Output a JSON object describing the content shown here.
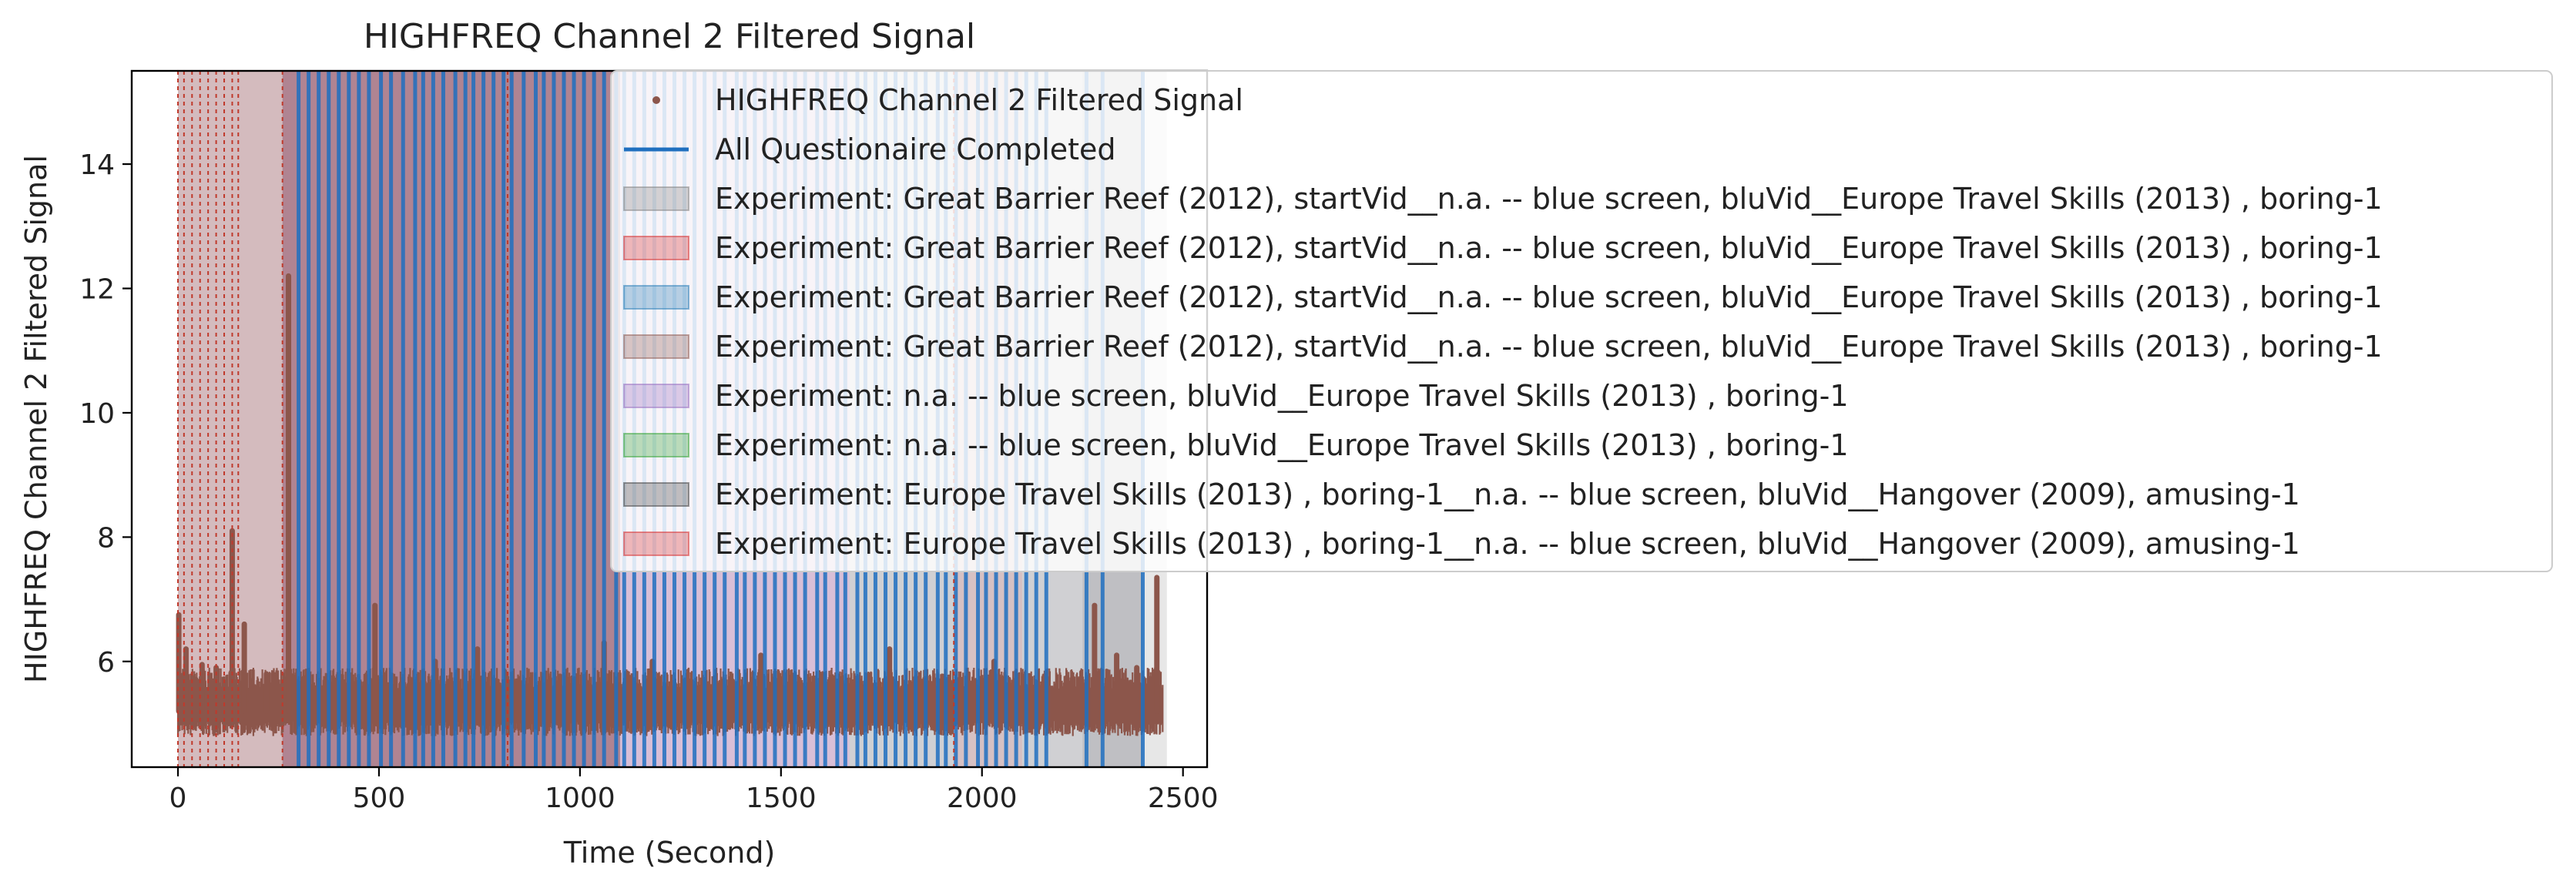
{
  "chart_data": {
    "type": "scatter",
    "title": "HIGHFREQ Channel 2 Filtered Signal",
    "xlabel": "Time (Second)",
    "ylabel": "HIGHFREQ Channel 2 Filtered Signal",
    "xlim": [
      -115,
      2560
    ],
    "ylim": [
      4.3,
      15.5
    ],
    "x_ticks": [
      0,
      500,
      1000,
      1500,
      2000,
      2500
    ],
    "y_ticks": [
      6,
      8,
      10,
      12,
      14
    ],
    "grid": false,
    "legend_position": "upper-right",
    "signal": {
      "name": "HIGHFREQ Channel 2 Filtered Signal",
      "color": "#8c564b",
      "x_range": [
        0,
        2450
      ],
      "baseline": [
        4.8,
        5.9
      ],
      "peaks": [
        {
          "x": 2,
          "y": 6.75
        },
        {
          "x": 20,
          "y": 6.2
        },
        {
          "x": 60,
          "y": 5.95
        },
        {
          "x": 95,
          "y": 5.9
        },
        {
          "x": 135,
          "y": 8.1
        },
        {
          "x": 165,
          "y": 6.6
        },
        {
          "x": 220,
          "y": 5.8
        },
        {
          "x": 275,
          "y": 12.2
        },
        {
          "x": 325,
          "y": 5.8
        },
        {
          "x": 490,
          "y": 6.9
        },
        {
          "x": 640,
          "y": 6.0
        },
        {
          "x": 745,
          "y": 6.2
        },
        {
          "x": 1060,
          "y": 6.3
        },
        {
          "x": 1180,
          "y": 6.0
        },
        {
          "x": 1450,
          "y": 6.1
        },
        {
          "x": 1770,
          "y": 6.2
        },
        {
          "x": 2030,
          "y": 6.0
        },
        {
          "x": 2280,
          "y": 6.9
        },
        {
          "x": 2335,
          "y": 6.1
        },
        {
          "x": 2385,
          "y": 5.9
        },
        {
          "x": 2435,
          "y": 7.35
        }
      ]
    },
    "questionnaire_line": {
      "name": "All Questionaire Completed",
      "color": "#1f6fbf",
      "x": [
        300,
        325,
        350,
        375,
        400,
        425,
        450,
        475,
        505,
        530,
        560,
        590,
        610,
        635,
        660,
        690,
        715,
        735,
        760,
        785,
        810,
        830,
        860,
        890,
        910,
        935,
        960,
        985,
        1010,
        1035,
        1060,
        1090,
        1110,
        1135,
        1160,
        1185,
        1210,
        1235,
        1260,
        1285,
        1310,
        1335,
        1360,
        1390,
        1410,
        1435,
        1460,
        1485,
        1510,
        1535,
        1560,
        1590,
        1610,
        1640,
        1660,
        1690,
        1710,
        1735,
        1760,
        1785,
        1810,
        1835,
        1860,
        1890,
        1910,
        1935,
        1960,
        1990,
        2010,
        2035,
        2060,
        2085,
        2110,
        2135,
        2160,
        2260,
        2300,
        2400
      ]
    },
    "spans": [
      {
        "x0": 0,
        "x1": 1100,
        "color": "#8a8a92",
        "alpha": 0.45
      },
      {
        "x0": 0,
        "x1": 260,
        "color": "#e9a0a0",
        "alpha": 0.35
      },
      {
        "x0": 260,
        "x1": 1100,
        "color": "#9a4a60",
        "alpha": 0.55
      },
      {
        "x0": 1100,
        "x1": 1670,
        "color": "#a0609a",
        "alpha": 0.4
      },
      {
        "x0": 1670,
        "x1": 2250,
        "color": "#8a8a92",
        "alpha": 0.4
      },
      {
        "x0": 1930,
        "x1": 2100,
        "color": "#e9a0a0",
        "alpha": 0.3
      },
      {
        "x0": 2250,
        "x1": 2400,
        "color": "#8a8a92",
        "alpha": 0.55
      },
      {
        "x0": 2400,
        "x1": 2460,
        "color": "#b0b0b0",
        "alpha": 0.3
      }
    ],
    "dashed_lines": {
      "color": "#c0392b",
      "x": [
        0,
        15,
        35,
        55,
        75,
        95,
        115,
        135,
        150,
        260,
        820,
        1930
      ]
    },
    "legend": [
      {
        "kind": "marker",
        "color": "#8c564b",
        "label": "HIGHFREQ Channel 2 Filtered Signal"
      },
      {
        "kind": "line",
        "color": "#1f6fbf",
        "label": "All Questionaire Completed"
      },
      {
        "kind": "patch",
        "color": "#7f7f7f",
        "label": "Experiment: Great Barrier Reef (2012), startVid__n.a. -- blue screen, bluVid__Europe Travel Skills (2013) , boring-1"
      },
      {
        "kind": "patch",
        "color": "#d62728",
        "label": "Experiment: Great Barrier Reef (2012), startVid__n.a. -- blue screen, bluVid__Europe Travel Skills (2013) , boring-1"
      },
      {
        "kind": "patch",
        "color": "#1f77b4",
        "label": "Experiment: Great Barrier Reef (2012), startVid__n.a. -- blue screen, bluVid__Europe Travel Skills (2013) , boring-1"
      },
      {
        "kind": "patch",
        "color": "#8c564b",
        "label": "Experiment: Great Barrier Reef (2012), startVid__n.a. -- blue screen, bluVid__Europe Travel Skills (2013) , boring-1"
      },
      {
        "kind": "patch",
        "color": "#9467bd",
        "label": "Experiment: n.a. -- blue screen, bluVid__Europe Travel Skills (2013) , boring-1"
      },
      {
        "kind": "patch",
        "color": "#2ca02c",
        "label": "Experiment: n.a. -- blue screen, bluVid__Europe Travel Skills (2013) , boring-1"
      },
      {
        "kind": "patch",
        "color": "#3a3a3a",
        "label": "Experiment: Europe Travel Skills (2013) , boring-1__n.a. -- blue screen, bluVid__Hangover (2009), amusing-1"
      },
      {
        "kind": "patch",
        "color": "#d62728",
        "label": "Experiment: Europe Travel Skills (2013) , boring-1__n.a. -- blue screen, bluVid__Hangover (2009), amusing-1"
      }
    ]
  }
}
